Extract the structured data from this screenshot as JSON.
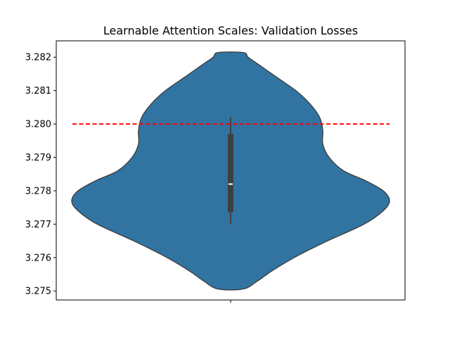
{
  "chart_data": {
    "type": "violin",
    "title": "Learnable Attention Scales: Validation Losses",
    "xlabel": "",
    "ylabel": "",
    "ylim": [
      3.27473,
      3.28249
    ],
    "yticks": [
      3.275,
      3.276,
      3.277,
      3.278,
      3.279,
      3.28,
      3.281,
      3.282
    ],
    "ytick_labels": [
      "3.275",
      "3.276",
      "3.277",
      "3.278",
      "3.279",
      "3.280",
      "3.281",
      "3.282"
    ],
    "grid": false,
    "legend": null,
    "violin": {
      "color": "#3274a1",
      "edge_color": "#3a3a3a",
      "min": 3.27506,
      "max": 3.28214,
      "density_profile": [
        [
          3.27506,
          0.08
        ],
        [
          3.2753,
          0.17
        ],
        [
          3.2756,
          0.26
        ],
        [
          3.276,
          0.4
        ],
        [
          3.2765,
          0.61
        ],
        [
          3.277,
          0.84
        ],
        [
          3.2774,
          0.96
        ],
        [
          3.2777,
          1.0
        ],
        [
          3.278,
          0.96
        ],
        [
          3.2783,
          0.85
        ],
        [
          3.2786,
          0.71
        ],
        [
          3.279,
          0.62
        ],
        [
          3.2794,
          0.58
        ],
        [
          3.2798,
          0.58
        ],
        [
          3.2802,
          0.56
        ],
        [
          3.2806,
          0.5
        ],
        [
          3.281,
          0.41
        ],
        [
          3.2814,
          0.29
        ],
        [
          3.2818,
          0.17
        ],
        [
          3.282,
          0.11
        ],
        [
          3.28214,
          0.08
        ]
      ],
      "box": {
        "q1": 3.27736,
        "median": 3.2782,
        "q3": 3.2797,
        "whisker_low": 3.277,
        "whisker_high": 3.28021
      }
    },
    "reference_line": {
      "y": 3.28,
      "color": "#ff0000",
      "style": "dashed"
    },
    "xtick_count": 1
  }
}
